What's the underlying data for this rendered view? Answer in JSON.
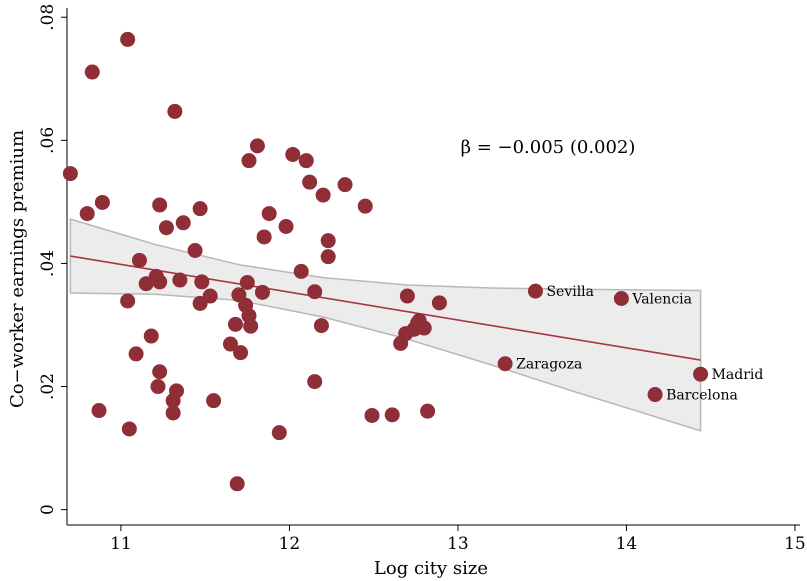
{
  "chart_data": {
    "type": "scatter",
    "xlabel": "Log city size",
    "ylabel": "Co−worker earnings premium",
    "xlim": [
      10.68,
      15.03
    ],
    "ylim": [
      -0.0025,
      0.0815
    ],
    "x_ticks": [
      11,
      12,
      13,
      14,
      15
    ],
    "x_tick_labels": [
      "11",
      "12",
      "13",
      "14",
      "15"
    ],
    "y_ticks": [
      0,
      0.02,
      0.04,
      0.06,
      0.08
    ],
    "y_tick_labels": [
      "0",
      ".02",
      ".04",
      ".06",
      ".08"
    ],
    "annotation": "β = −0.005 (0.002)",
    "grid": false,
    "legend": "none",
    "marker_color": "#8f2e36",
    "fit_line_color": "#a9363b",
    "ci_fill_color": "#ececec",
    "ci_stroke_color": "#b8b8b8",
    "fit_line": {
      "x": [
        10.7,
        14.44
      ],
      "y": [
        0.0412,
        0.0243
      ]
    },
    "ci_band": {
      "upper": [
        [
          10.7,
          0.0472
        ],
        [
          11.2,
          0.0431
        ],
        [
          11.7,
          0.0398
        ],
        [
          12.2,
          0.0377
        ],
        [
          12.7,
          0.0365
        ],
        [
          13.2,
          0.036
        ],
        [
          13.7,
          0.0358
        ],
        [
          14.44,
          0.0356
        ]
      ],
      "lower": [
        [
          10.7,
          0.0352
        ],
        [
          11.2,
          0.035
        ],
        [
          11.7,
          0.034
        ],
        [
          12.2,
          0.0313
        ],
        [
          12.7,
          0.0277
        ],
        [
          13.2,
          0.0235
        ],
        [
          13.7,
          0.0191
        ],
        [
          14.44,
          0.0128
        ]
      ]
    },
    "labeled_points": [
      {
        "label": "Sevilla",
        "x": 13.46,
        "y": 0.0355
      },
      {
        "label": "Valencia",
        "x": 13.97,
        "y": 0.0343
      },
      {
        "label": "Zaragoza",
        "x": 13.28,
        "y": 0.0237
      },
      {
        "label": "Madrid",
        "x": 14.44,
        "y": 0.022
      },
      {
        "label": "Barcelona",
        "x": 14.17,
        "y": 0.0187
      }
    ],
    "points": [
      {
        "x": 10.7,
        "y": 0.0546
      },
      {
        "x": 10.8,
        "y": 0.0481
      },
      {
        "x": 10.83,
        "y": 0.0711
      },
      {
        "x": 10.87,
        "y": 0.0161
      },
      {
        "x": 10.89,
        "y": 0.0499
      },
      {
        "x": 11.04,
        "y": 0.0764
      },
      {
        "x": 11.04,
        "y": 0.0339
      },
      {
        "x": 11.05,
        "y": 0.0131
      },
      {
        "x": 11.09,
        "y": 0.0253
      },
      {
        "x": 11.11,
        "y": 0.0405
      },
      {
        "x": 11.15,
        "y": 0.0367
      },
      {
        "x": 11.18,
        "y": 0.0282
      },
      {
        "x": 11.21,
        "y": 0.0379
      },
      {
        "x": 11.22,
        "y": 0.02
      },
      {
        "x": 11.23,
        "y": 0.0224
      },
      {
        "x": 11.23,
        "y": 0.037
      },
      {
        "x": 11.23,
        "y": 0.0495
      },
      {
        "x": 11.27,
        "y": 0.0458
      },
      {
        "x": 11.31,
        "y": 0.0157
      },
      {
        "x": 11.31,
        "y": 0.0177
      },
      {
        "x": 11.32,
        "y": 0.0647
      },
      {
        "x": 11.33,
        "y": 0.0193
      },
      {
        "x": 11.35,
        "y": 0.0373
      },
      {
        "x": 11.37,
        "y": 0.0466
      },
      {
        "x": 11.44,
        "y": 0.0421
      },
      {
        "x": 11.47,
        "y": 0.0335
      },
      {
        "x": 11.47,
        "y": 0.0489
      },
      {
        "x": 11.48,
        "y": 0.037
      },
      {
        "x": 11.53,
        "y": 0.0347
      },
      {
        "x": 11.55,
        "y": 0.0177
      },
      {
        "x": 11.65,
        "y": 0.0269
      },
      {
        "x": 11.68,
        "y": 0.0301
      },
      {
        "x": 11.69,
        "y": 0.0042
      },
      {
        "x": 11.7,
        "y": 0.0349
      },
      {
        "x": 11.71,
        "y": 0.0255
      },
      {
        "x": 11.74,
        "y": 0.0332
      },
      {
        "x": 11.75,
        "y": 0.0369
      },
      {
        "x": 11.76,
        "y": 0.0315
      },
      {
        "x": 11.76,
        "y": 0.0567
      },
      {
        "x": 11.77,
        "y": 0.0298
      },
      {
        "x": 11.81,
        "y": 0.0591
      },
      {
        "x": 11.84,
        "y": 0.0353
      },
      {
        "x": 11.85,
        "y": 0.0443
      },
      {
        "x": 11.88,
        "y": 0.0481
      },
      {
        "x": 11.94,
        "y": 0.0125
      },
      {
        "x": 11.98,
        "y": 0.046
      },
      {
        "x": 12.02,
        "y": 0.0577
      },
      {
        "x": 12.07,
        "y": 0.0387
      },
      {
        "x": 12.1,
        "y": 0.0567
      },
      {
        "x": 12.12,
        "y": 0.0532
      },
      {
        "x": 12.15,
        "y": 0.0354
      },
      {
        "x": 12.15,
        "y": 0.0208
      },
      {
        "x": 12.19,
        "y": 0.0299
      },
      {
        "x": 12.2,
        "y": 0.0511
      },
      {
        "x": 12.23,
        "y": 0.0437
      },
      {
        "x": 12.23,
        "y": 0.0411
      },
      {
        "x": 12.33,
        "y": 0.0528
      },
      {
        "x": 12.45,
        "y": 0.0493
      },
      {
        "x": 12.49,
        "y": 0.0153
      },
      {
        "x": 12.61,
        "y": 0.0154
      },
      {
        "x": 12.66,
        "y": 0.027
      },
      {
        "x": 12.69,
        "y": 0.0286
      },
      {
        "x": 12.7,
        "y": 0.0347
      },
      {
        "x": 12.74,
        "y": 0.0293
      },
      {
        "x": 12.76,
        "y": 0.0303
      },
      {
        "x": 12.77,
        "y": 0.0307
      },
      {
        "x": 12.8,
        "y": 0.0295
      },
      {
        "x": 12.82,
        "y": 0.016
      },
      {
        "x": 12.89,
        "y": 0.0336
      },
      {
        "x": 13.28,
        "y": 0.0237
      },
      {
        "x": 13.46,
        "y": 0.0355
      },
      {
        "x": 13.97,
        "y": 0.0343
      },
      {
        "x": 14.17,
        "y": 0.0187
      },
      {
        "x": 14.44,
        "y": 0.022
      }
    ]
  }
}
